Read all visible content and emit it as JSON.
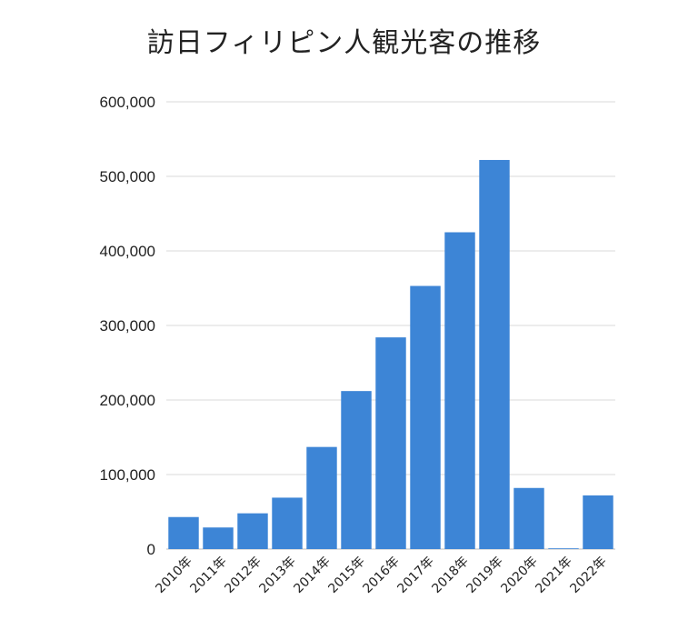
{
  "chart_data": {
    "type": "bar",
    "title": "訪日フィリピン人観光客の推移",
    "xlabel": "",
    "ylabel": "",
    "categories": [
      "2010年",
      "2011年",
      "2012年",
      "2013年",
      "2014年",
      "2015年",
      "2016年",
      "2017年",
      "2018年",
      "2019年",
      "2020年",
      "2021年",
      "2022年"
    ],
    "values": [
      43000,
      29000,
      48000,
      69000,
      137000,
      212000,
      284000,
      353000,
      425000,
      522000,
      82000,
      1000,
      72000
    ],
    "ylim": [
      0,
      600000
    ],
    "yticks": [
      0,
      100000,
      200000,
      300000,
      400000,
      500000,
      600000
    ],
    "ytick_labels": [
      "0",
      "100,000",
      "200,000",
      "300,000",
      "400,000",
      "500,000",
      "600,000"
    ],
    "bar_color": "#3d85d6",
    "grid_color": "#d9d9d9",
    "grid": true,
    "legend": "none"
  }
}
